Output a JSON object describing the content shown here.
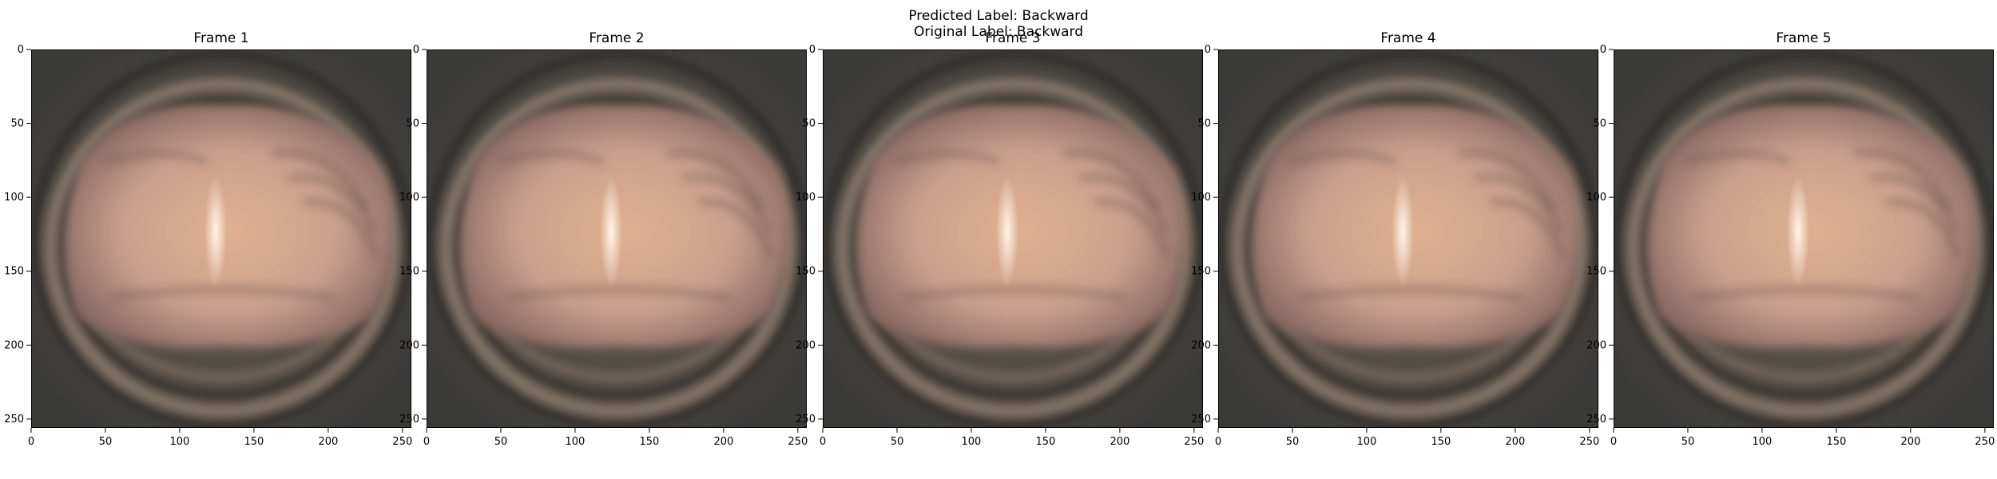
{
  "figure": {
    "suptitle_line1": "Predicted Label: Backward",
    "suptitle_line2": "Original Label: Backward"
  },
  "frames": [
    {
      "title": "Frame 1"
    },
    {
      "title": "Frame 2"
    },
    {
      "title": "Frame 3"
    },
    {
      "title": "Frame 4"
    },
    {
      "title": "Frame 5"
    }
  ],
  "axes": {
    "xticks": [
      "0",
      "50",
      "100",
      "150",
      "200",
      "250"
    ],
    "yticks": [
      "0",
      "50",
      "100",
      "150",
      "200",
      "250"
    ],
    "xrange": [
      0,
      256
    ],
    "yrange": [
      0,
      256
    ]
  },
  "image": {
    "description_colors": {
      "background": "#3a3a38",
      "ring_dark": "#4a4640",
      "ring_light": "#7a6c60",
      "tissue": "#c9a08e",
      "tissue_warm": "#e2b08e",
      "highlight": "#fff4e8"
    }
  }
}
